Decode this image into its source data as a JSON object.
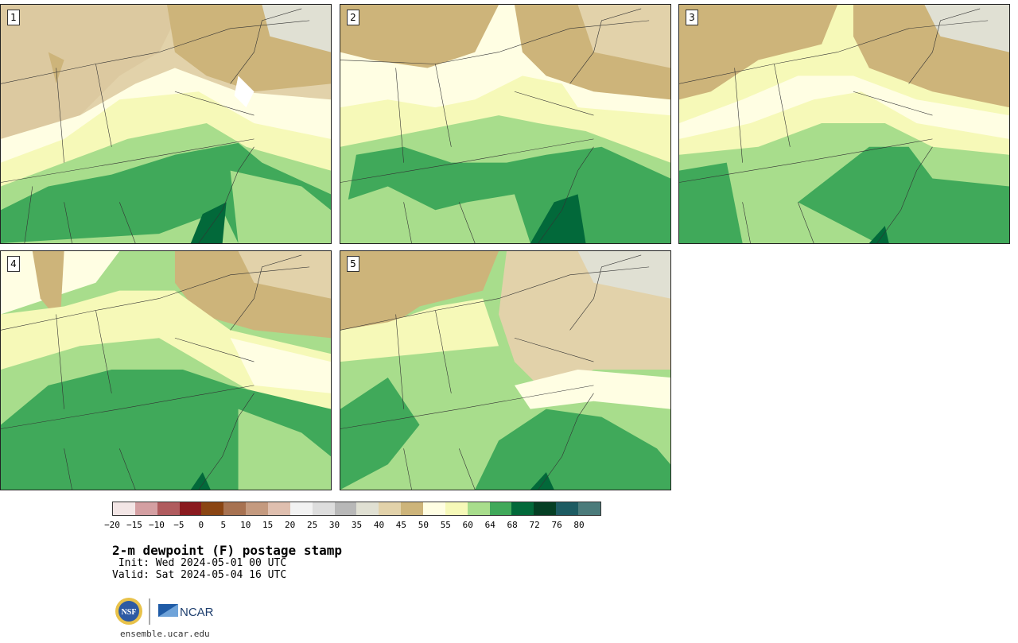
{
  "panels": [
    {
      "label": "1"
    },
    {
      "label": "2"
    },
    {
      "label": "3"
    },
    {
      "label": "4"
    },
    {
      "label": "5"
    }
  ],
  "colorbar": {
    "colors": [
      "#f3e6e6",
      "#d49fa2",
      "#b05b5e",
      "#8a1a1f",
      "#8a4513",
      "#a77251",
      "#c49a7f",
      "#dfbfaf",
      "#f2f2f2",
      "#dddddd",
      "#b8b8b8",
      "#e0e0d3",
      "#e2d2aa",
      "#cdb47a",
      "#fffee3",
      "#f6f9b8",
      "#a8dd8c",
      "#40a95a",
      "#02693a",
      "#053f24",
      "#1d5b62",
      "#4b7b7b"
    ],
    "ticks": [
      "−20",
      "−15",
      "−10",
      "−5",
      "0",
      "5",
      "10",
      "15",
      "20",
      "25",
      "30",
      "35",
      "40",
      "45",
      "50",
      "55",
      "60",
      "64",
      "68",
      "72",
      "76",
      "80"
    ]
  },
  "title": "2-m dewpoint (F) postage stamp",
  "init": " Init: Wed 2024-05-01 00 UTC",
  "valid": "Valid: Sat 2024-05-04 16 UTC",
  "logos": {
    "nsf": "NSF",
    "ncar": "NCAR"
  },
  "url": "ensemble.ucar.edu"
}
